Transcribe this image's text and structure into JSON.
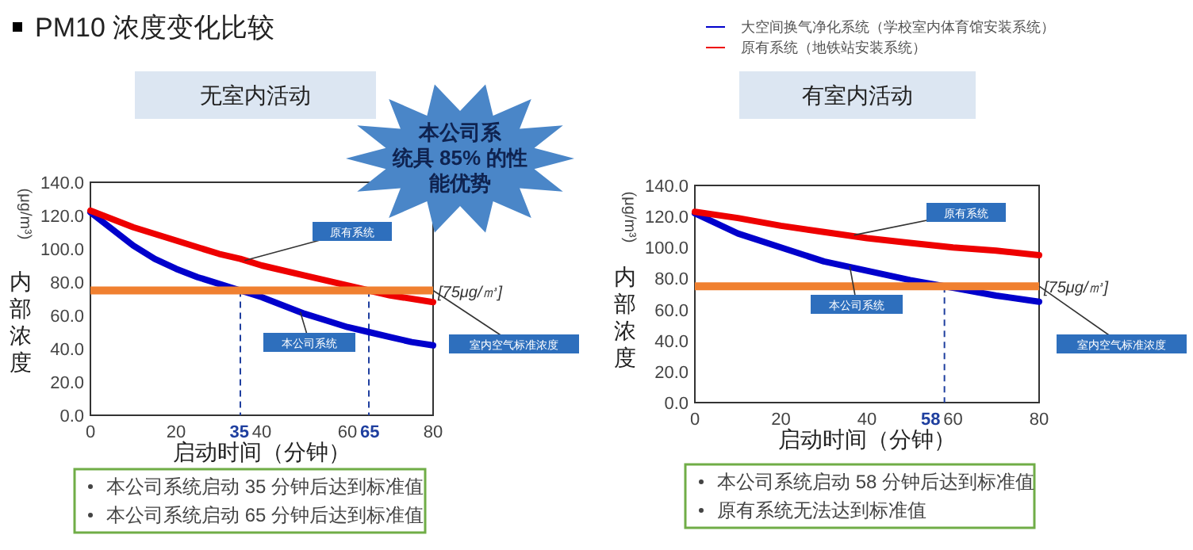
{
  "chart_data": [
    {
      "type": "line",
      "title": "PM10 浓度变化比较",
      "subtitle": "无室内活动",
      "xlabel": "启动时间（分钟）",
      "ylabel": "内部浓度",
      "xlim": [
        0,
        80
      ],
      "xticks": [
        0,
        20,
        40,
        60,
        80
      ],
      "ylim": [
        0,
        140
      ],
      "yticks": [
        {
          "value": 0,
          "label": "0.0"
        },
        {
          "value": 20,
          "label": "20.0"
        },
        {
          "value": 40,
          "label": "40.0"
        },
        {
          "value": 60,
          "label": "60.0"
        },
        {
          "value": 80,
          "label": "80.0"
        },
        {
          "value": 100,
          "label": "100.0"
        },
        {
          "value": 120,
          "label": "120.0"
        },
        {
          "value": 140,
          "label": "140.0"
        }
      ],
      "grid": false,
      "marker": "none",
      "line_style": "solid",
      "series": [
        {
          "color": "#0000cc",
          "x": [
            0,
            5,
            10,
            15,
            20,
            25,
            30,
            35,
            40,
            45,
            50,
            55,
            60,
            65,
            70,
            75,
            80
          ],
          "values": [
            122,
            112,
            102,
            94,
            88,
            83,
            79,
            75,
            71,
            66,
            61,
            57,
            53,
            50,
            47,
            44,
            42
          ]
        },
        {
          "color": "#ee0000",
          "x": [
            0,
            10,
            20,
            30,
            35,
            40,
            50,
            60,
            65,
            70,
            80
          ],
          "values": [
            123,
            113,
            105,
            97,
            94,
            90,
            84,
            78,
            75,
            72,
            68
          ]
        }
      ],
      "ref_lines": [
        {
          "axis": "y",
          "value": 75,
          "label": "[75μg/㎥]",
          "color": "#f08030"
        },
        {
          "axis": "x",
          "value": 35,
          "label": "35",
          "color": "#1f3f9f",
          "line_style": "dashed"
        },
        {
          "axis": "x",
          "value": 65,
          "label": "65",
          "color": "#1f3f9f",
          "line_style": "dashed"
        }
      ],
      "annotations": [
        "(μg/m³)",
        "本公司系统具 85% 的性能优势",
        "本公司系统启动 35 分钟后达到标准值",
        "本公司系统启动 65 分钟后达到标准值",
        {
          "text": "原有系统",
          "x": 36,
          "y": 93
        },
        {
          "text": "本公司系统",
          "x": 49,
          "y": 62
        },
        {
          "text": "室内空气标准浓度",
          "x": 80,
          "y": 75
        }
      ]
    },
    {
      "type": "line",
      "subtitle": "有室内活动",
      "xlabel": "启动时间（分钟）",
      "ylabel": "内部浓度",
      "xlim": [
        0,
        80
      ],
      "xticks": [
        0,
        20,
        40,
        60,
        80
      ],
      "ylim": [
        0,
        140
      ],
      "yticks": [
        {
          "value": 0,
          "label": "0.0"
        },
        {
          "value": 20,
          "label": "20.0"
        },
        {
          "value": 40,
          "label": "40.0"
        },
        {
          "value": 60,
          "label": "60.0"
        },
        {
          "value": 80,
          "label": "80.0"
        },
        {
          "value": 100,
          "label": "100.0"
        },
        {
          "value": 120,
          "label": "120.0"
        },
        {
          "value": 140,
          "label": "140.0"
        }
      ],
      "grid": false,
      "marker": "none",
      "line_style": "solid",
      "legend": "top right",
      "series": [
        {
          "name": "大空间换气净化系统（学校室内体育馆安装系统）",
          "color": "#0000cc",
          "x": [
            0,
            10,
            20,
            30,
            40,
            50,
            58,
            60,
            70,
            80
          ],
          "values": [
            122,
            109,
            100,
            91,
            85,
            79,
            75,
            74,
            69,
            65
          ]
        },
        {
          "name": "原有系统（地铁站安装系统）",
          "color": "#ee0000",
          "x": [
            0,
            10,
            20,
            30,
            40,
            50,
            60,
            70,
            80
          ],
          "values": [
            123,
            119,
            114,
            110,
            106,
            103,
            100,
            98,
            95
          ]
        }
      ],
      "ref_lines": [
        {
          "axis": "y",
          "value": 75,
          "label": "[75μg/㎥]",
          "color": "#f08030"
        },
        {
          "axis": "x",
          "value": 58,
          "label": "58",
          "color": "#1f3f9f",
          "line_style": "dashed"
        }
      ],
      "annotations": [
        "(μg/m³)",
        "本公司系统启动 58 分钟后达到标准值",
        "原有系统无法达到标准值",
        {
          "text": "原有系统",
          "x": 37,
          "y": 108
        },
        {
          "text": "本公司系统",
          "x": 36,
          "y": 88
        },
        {
          "text": "室内空气标准浓度",
          "x": 80,
          "y": 75
        }
      ]
    }
  ]
}
